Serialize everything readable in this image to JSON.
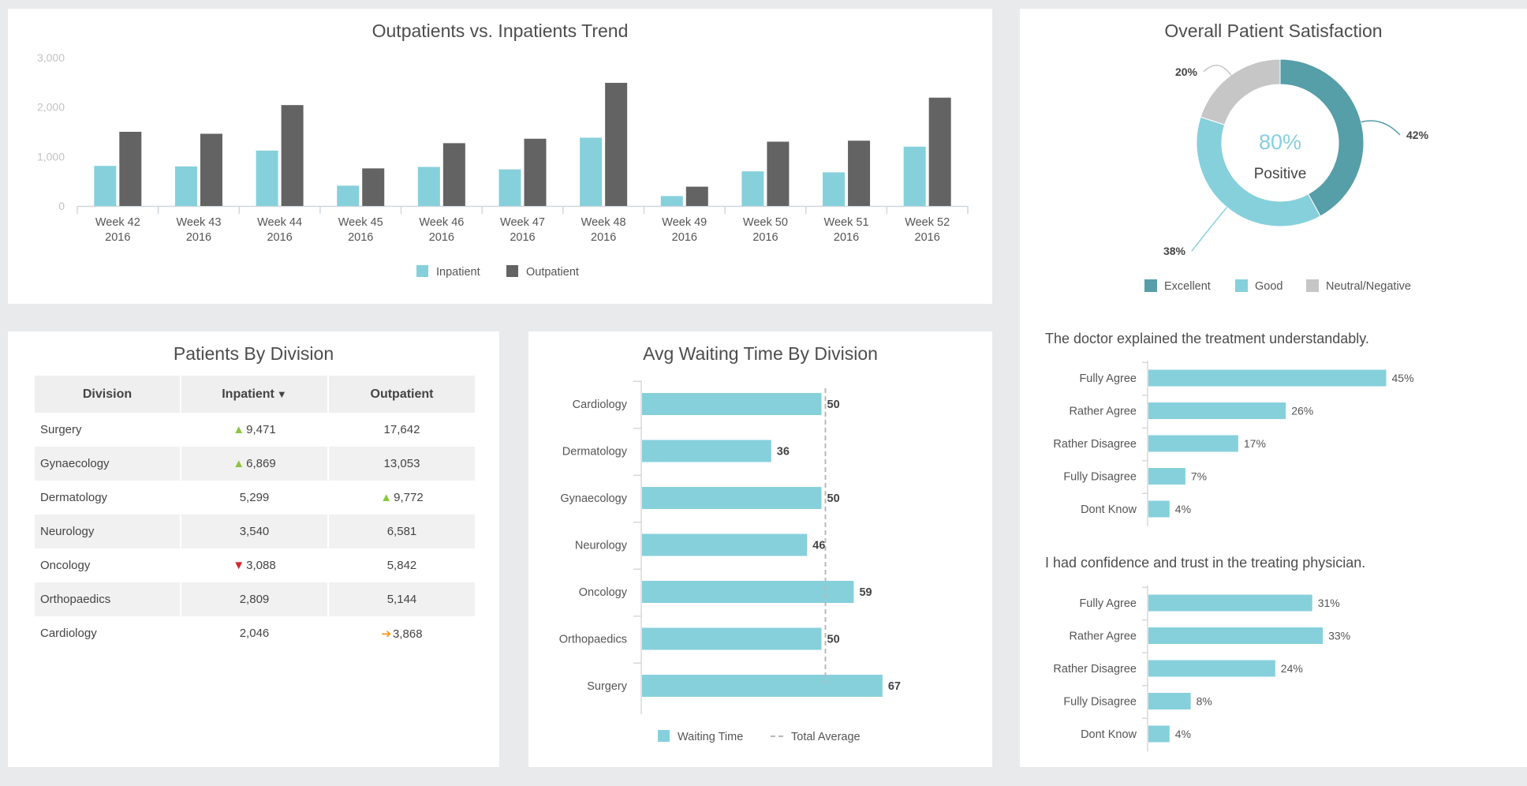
{
  "trend": {
    "chart_data": {
      "type": "bar",
      "title": "Outpatients vs. Inpatients Trend",
      "categories": [
        [
          "Week 42",
          "2016"
        ],
        [
          "Week 43",
          "2016"
        ],
        [
          "Week 44",
          "2016"
        ],
        [
          "Week 45",
          "2016"
        ],
        [
          "Week 46",
          "2016"
        ],
        [
          "Week 47",
          "2016"
        ],
        [
          "Week 48",
          "2016"
        ],
        [
          "Week 49",
          "2016"
        ],
        [
          "Week 50",
          "2016"
        ],
        [
          "Week 51",
          "2016"
        ],
        [
          "Week 52",
          "2016"
        ]
      ],
      "series": [
        {
          "name": "Inpatient",
          "color": "#86d0dc",
          "values": [
            810,
            800,
            1120,
            410,
            790,
            740,
            1380,
            200,
            700,
            680,
            1200
          ]
        },
        {
          "name": "Outpatient",
          "color": "#636363",
          "values": [
            1500,
            1460,
            2040,
            760,
            1270,
            1360,
            2490,
            390,
            1300,
            1320,
            2190
          ]
        }
      ],
      "ylim": [
        0,
        3000
      ],
      "yticks": [
        0,
        1000,
        2000,
        3000
      ],
      "ytick_labels": [
        "0",
        "1,000",
        "2,000",
        "3,000"
      ],
      "legend": "bottom"
    }
  },
  "satisfaction": {
    "title": "Overall Patient Satisfaction",
    "chart_data": {
      "type": "pie",
      "title": "Overall Patient Satisfaction",
      "center_value": "80%",
      "center_label": "Positive",
      "slices": [
        {
          "name": "Excellent",
          "value": 42,
          "label": "42%",
          "color": "#569ea8"
        },
        {
          "name": "Good",
          "value": 38,
          "label": "38%",
          "color": "#86d0dc"
        },
        {
          "name": "Neutral/Negative",
          "value": 20,
          "label": "20%",
          "color": "#c6c6c6"
        }
      ],
      "legend": "bottom"
    }
  },
  "q1": {
    "title": "The doctor explained the treatment understandably.",
    "chart_data": {
      "type": "bar",
      "orientation": "horizontal",
      "categories": [
        "Fully Agree",
        "Rather Agree",
        "Rather Disagree",
        "Fully Disagree",
        "Dont Know"
      ],
      "values": [
        45,
        26,
        17,
        7,
        4
      ],
      "value_labels": [
        "45%",
        "26%",
        "17%",
        "7%",
        "4%"
      ],
      "color": "#86d0dc"
    }
  },
  "q2": {
    "title": "I had confidence and trust in the treating physician.",
    "chart_data": {
      "type": "bar",
      "orientation": "horizontal",
      "categories": [
        "Fully Agree",
        "Rather Agree",
        "Rather Disagree",
        "Fully Disagree",
        "Dont Know"
      ],
      "values": [
        31,
        33,
        24,
        8,
        4
      ],
      "value_labels": [
        "31%",
        "33%",
        "24%",
        "8%",
        "4%"
      ],
      "color": "#86d0dc"
    }
  },
  "division": {
    "title": "Patients By Division",
    "columns": {
      "division": "Division",
      "inpatient": "Inpatient",
      "sort": "▼",
      "outpatient": "Outpatient"
    },
    "rows": [
      {
        "division": "Surgery",
        "in_arrow": "▲",
        "in_dir": "up",
        "inpatient": "9,471",
        "out_arrow": "",
        "out_dir": "",
        "outpatient": "17,642"
      },
      {
        "division": "Gynaecology",
        "in_arrow": "▲",
        "in_dir": "up",
        "inpatient": "6,869",
        "out_arrow": "",
        "out_dir": "",
        "outpatient": "13,053"
      },
      {
        "division": "Dermatology",
        "in_arrow": "",
        "in_dir": "",
        "inpatient": "5,299",
        "out_arrow": "▲",
        "out_dir": "up",
        "outpatient": "9,772"
      },
      {
        "division": "Neurology",
        "in_arrow": "",
        "in_dir": "",
        "inpatient": "3,540",
        "out_arrow": "",
        "out_dir": "",
        "outpatient": "6,581"
      },
      {
        "division": "Oncology",
        "in_arrow": "▼",
        "in_dir": "down",
        "inpatient": "3,088",
        "out_arrow": "",
        "out_dir": "",
        "outpatient": "5,842"
      },
      {
        "division": "Orthopaedics",
        "in_arrow": "",
        "in_dir": "",
        "inpatient": "2,809",
        "out_arrow": "",
        "out_dir": "",
        "outpatient": "5,144"
      },
      {
        "division": "Cardiology",
        "in_arrow": "",
        "in_dir": "",
        "inpatient": "2,046",
        "out_arrow": "➔",
        "out_dir": "right",
        "outpatient": "3,868"
      }
    ]
  },
  "waiting": {
    "chart_data": {
      "type": "bar",
      "orientation": "horizontal",
      "title": "Avg Waiting Time By Division",
      "categories": [
        "Cardiology",
        "Dermatology",
        "Gynaecology",
        "Neurology",
        "Oncology",
        "Orthopaedics",
        "Surgery"
      ],
      "values": [
        50,
        36,
        50,
        46,
        59,
        50,
        67
      ],
      "value_labels": [
        "50",
        "36",
        "50",
        "46",
        "59",
        "50",
        "67"
      ],
      "average": 51.1,
      "xlim": [
        0,
        72
      ],
      "legend": [
        "Waiting Time",
        "Total Average"
      ],
      "color": "#86d0dc"
    }
  }
}
